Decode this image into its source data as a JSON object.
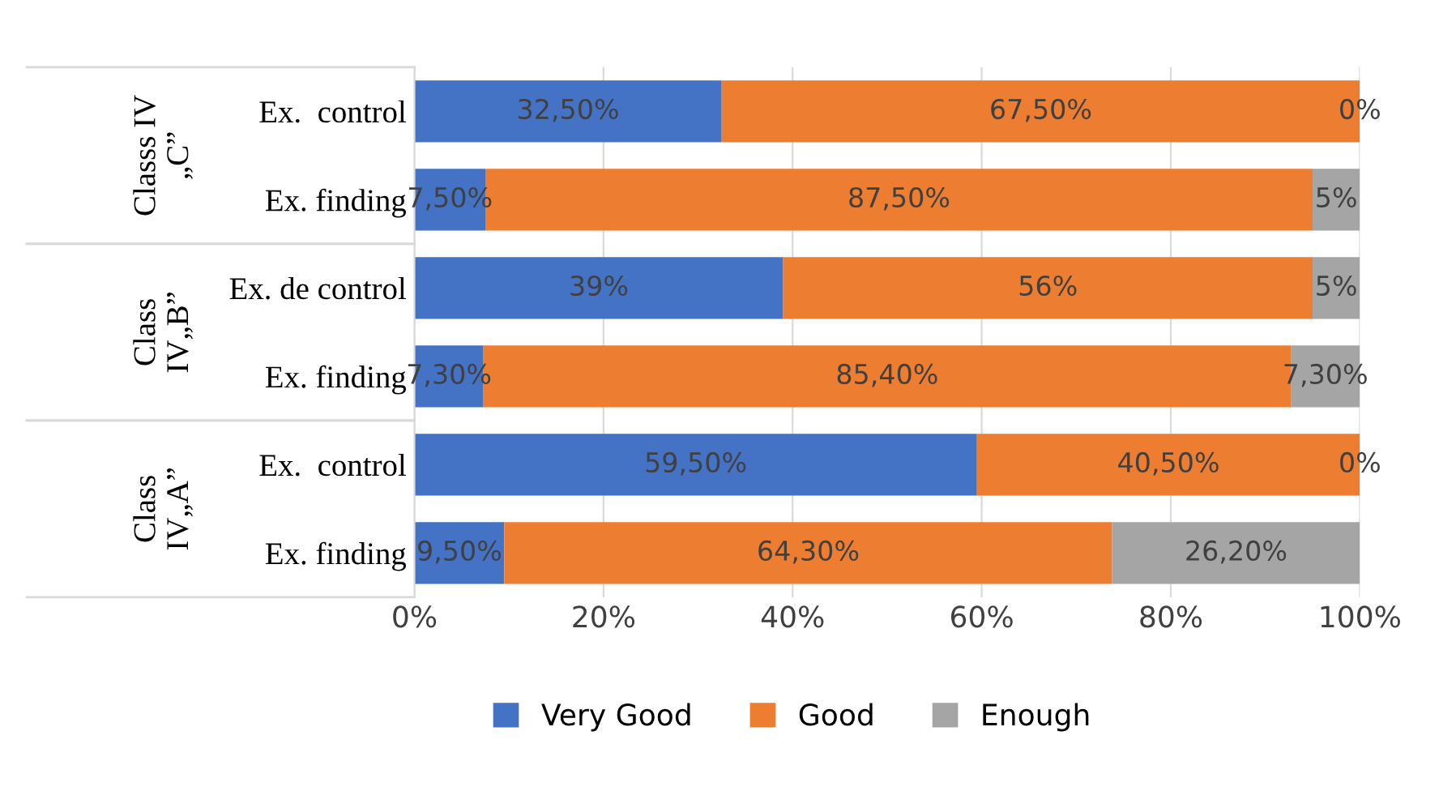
{
  "chart_data": {
    "type": "bar",
    "orientation": "horizontal",
    "stacked": true,
    "categories": [
      "Ex.  control",
      "Ex. finding",
      "Ex. de control",
      "Ex. finding",
      "Ex.  control",
      "Ex. finding"
    ],
    "series": [
      {
        "name": "Very Good",
        "color": "#4472c4",
        "values": [
          32.5,
          7.5,
          39,
          7.3,
          59.5,
          9.5
        ],
        "value_labels": [
          "32,50%",
          "7,50%",
          "39%",
          "7,30%",
          "59,50%",
          "9,50%"
        ]
      },
      {
        "name": "Good",
        "color": "#ed7d31",
        "values": [
          67.5,
          87.5,
          56,
          85.4,
          40.5,
          64.3
        ],
        "value_labels": [
          "67,50%",
          "87,50%",
          "56%",
          "85,40%",
          "40,50%",
          "64,30%"
        ]
      },
      {
        "name": "Enough",
        "color": "#a5a5a5",
        "values": [
          0,
          5,
          5,
          7.3,
          0,
          26.2
        ],
        "value_labels": [
          "0%",
          "5%",
          "5%",
          "7,30%",
          "0%",
          "26,20%"
        ]
      }
    ],
    "annotations": [
      "Classs IV\n„C”",
      "Class\nIV„B”",
      "Class\nIV„A”"
    ],
    "xlim": [
      0,
      100
    ],
    "xticks": [
      {
        "value": 0,
        "label": "0%"
      },
      {
        "value": 20,
        "label": "20%"
      },
      {
        "value": 40,
        "label": "40%"
      },
      {
        "value": 60,
        "label": "60%"
      },
      {
        "value": 80,
        "label": "80%"
      },
      {
        "value": 100,
        "label": "100%"
      }
    ],
    "grid": "x",
    "legend": "bottom"
  }
}
